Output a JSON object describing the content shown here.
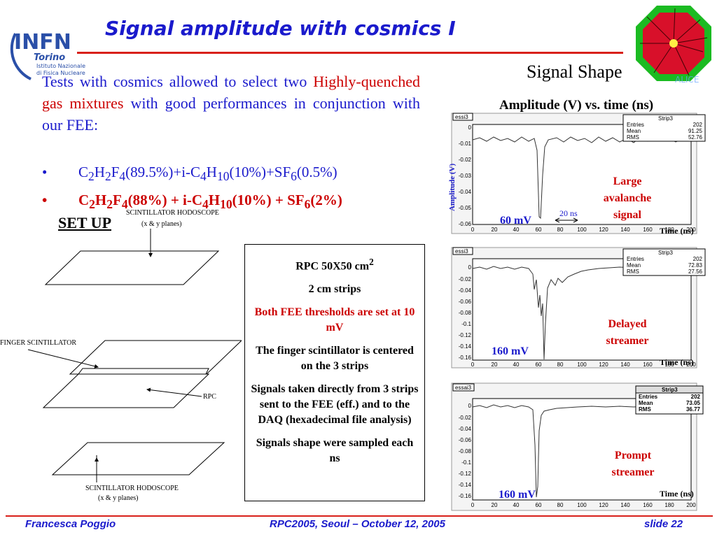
{
  "title": "Signal amplitude with cosmics I",
  "logo_left": {
    "letters": "INFN",
    "line1": "Torino",
    "line2": "Istituto Nazionale",
    "line3": "di Fisica Nucleare"
  },
  "intro": {
    "part1": "Tests with cosmics allowed to select two",
    "highlight": "Highly-quenched gas mixtures",
    "part2": "with good performances in conjunction with our FEE:"
  },
  "bullets": [
    {
      "a": "C",
      "s1": "2",
      "b": "H",
      "s2": "2",
      "c": "F",
      "s3": "4",
      "d": "(89.5%)+i-C",
      "s4": "4",
      "e": "H",
      "s5": "10",
      "f": "(10%)+SF",
      "s6": "6",
      "g": "(0.5%)",
      "color": "#1a1acc"
    },
    {
      "a": "C",
      "s1": "2",
      "b": "H",
      "s2": "2",
      "c": "F",
      "s3": "4",
      "d": "(88%) + i-C",
      "s4": "4",
      "e": "H",
      "s5": "10",
      "f": "(10%) + SF",
      "s6": "6",
      "g": "(2%)",
      "color": "#cc0000"
    }
  ],
  "setup_label": "SET UP",
  "diagram": {
    "top_label": "SCINTILLATOR HODOSCOPE",
    "top_sub": "(x & y planes)",
    "finger_label": "FINGER SCINTILLATOR",
    "rpc_label": "RPC",
    "bottom_label": "SCINTILLATOR HODOSCOPE",
    "bottom_sub": "(x & y planes)"
  },
  "infobox": {
    "rpc_size": "RPC 50X50 cm",
    "rpc_size_sup": "2",
    "strips": "2 cm strips",
    "thresholds": "Both FEE thresholds are set at 10 mV",
    "finger": "The finger scintillator is centered on the 3 strips",
    "signals": "Signals taken directly from 3 strips sent to the FEE (eff.) and to the DAQ (hexadecimal file analysis)",
    "sampled": "Signals shape were sampled each ns"
  },
  "shape_title": "Signal Shape",
  "shape_subtitle": "Amplitude (V) vs. time (ns)",
  "plots": [
    {
      "tag": "essi3",
      "stat_title": "Strip3",
      "entries": "202",
      "mean": "91.25",
      "rms": "52.76",
      "yticks": [
        "0",
        "-0.01",
        "-0.02",
        "-0.03",
        "-0.04",
        "-0.05",
        "-0.06"
      ],
      "xticks": [
        "0",
        "20",
        "40",
        "60",
        "80",
        "100",
        "120",
        "140",
        "160",
        "180",
        "200"
      ],
      "ylabel": "Amplitude (V)",
      "xlabel": "Time (ns)",
      "amp_label": "60 mV",
      "desc": "Large avalanche signal",
      "width_label": "20 ns"
    },
    {
      "tag": "essi3",
      "stat_title": "Strip3",
      "entries": "202",
      "mean": "72.83",
      "rms": "27.56",
      "yticks": [
        "0",
        "-0.02",
        "-0.04",
        "-0.06",
        "-0.08",
        "-0.1",
        "-0.12",
        "-0.14",
        "-0.16"
      ],
      "xticks": [
        "0",
        "20",
        "40",
        "60",
        "80",
        "100",
        "120",
        "140",
        "160",
        "180",
        "200"
      ],
      "xlabel": "Time (ns)",
      "amp_label": "160 mV",
      "desc": "Delayed streamer"
    },
    {
      "tag": "essai3",
      "stat_title": "Strip3",
      "entries": "202",
      "mean": "73.05",
      "rms": "36.77",
      "yticks": [
        "0",
        "-0.02",
        "-0.04",
        "-0.06",
        "-0.08",
        "-0.1",
        "-0.12",
        "-0.14",
        "-0.16"
      ],
      "xticks": [
        "0",
        "20",
        "40",
        "60",
        "80",
        "100",
        "120",
        "140",
        "160",
        "180",
        "200"
      ],
      "xlabel": "Time (ns)",
      "amp_label": "160 mV",
      "desc": "Prompt streamer"
    }
  ],
  "stat_keys": {
    "entries": "Entries",
    "mean": "Mean",
    "rms": "RMS"
  },
  "footer": {
    "left": "Francesca Poggio",
    "center": "RPC2005, Seoul – October 12, 2005",
    "right": "slide 22"
  }
}
